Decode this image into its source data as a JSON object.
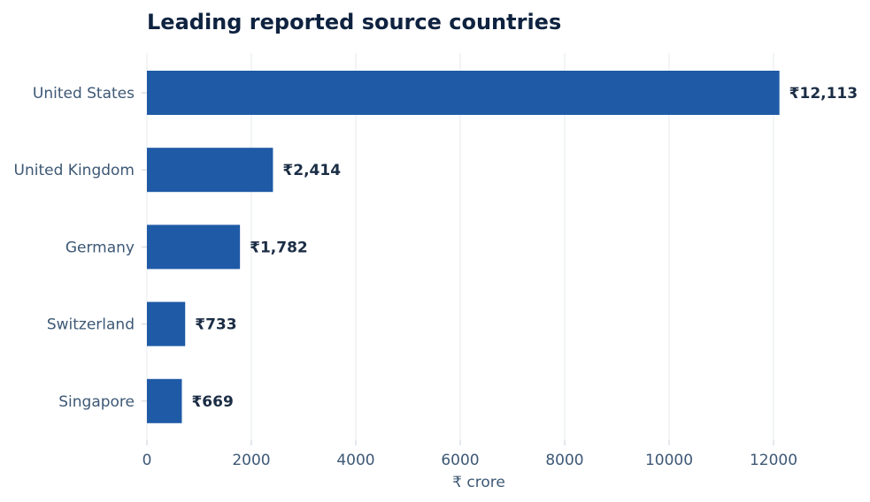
{
  "chart_data": {
    "type": "bar",
    "orientation": "horizontal",
    "title": "Leading reported source countries",
    "xlabel": "₹ crore",
    "ylabel": "",
    "categories": [
      "United States",
      "United Kingdom",
      "Germany",
      "Switzerland",
      "Singapore"
    ],
    "values": [
      12113,
      2414,
      1782,
      733,
      669
    ],
    "value_labels": [
      "₹12,113",
      "₹2,414",
      "₹1,782",
      "₹733",
      "₹669"
    ],
    "xlim": [
      0,
      13000
    ],
    "xticks": [
      0,
      2000,
      4000,
      6000,
      8000,
      10000,
      12000
    ],
    "grid": "vertical",
    "legend": "none"
  },
  "colors": {
    "bar": "#1f5aa6",
    "title": "#0f2340",
    "axis_text": "#3d5875",
    "value_text": "#1b2d45",
    "grid": "#e6e9ee",
    "axis_line": "#c9d1db"
  }
}
